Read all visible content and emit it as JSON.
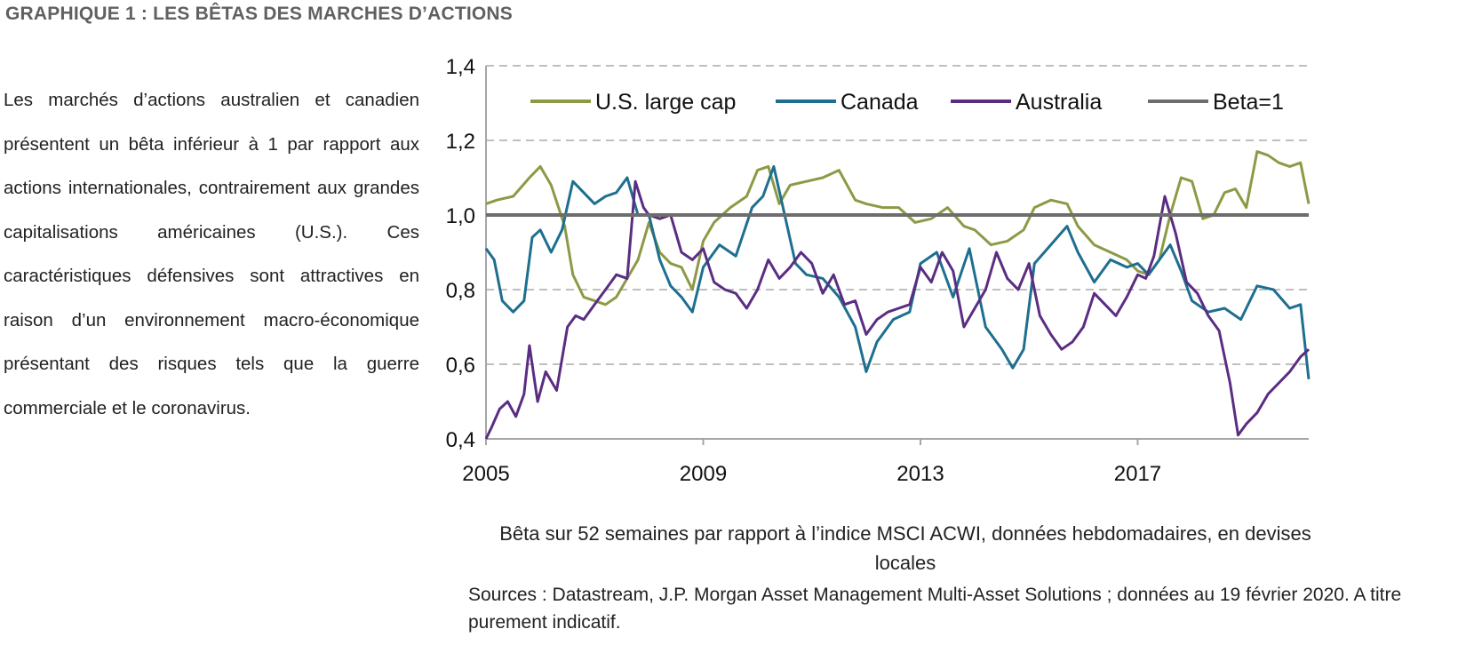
{
  "heading": "GRAPHIQUE 1 : LES BÊTAS DES MARCHES D’ACTIONS",
  "body_text": "Les marchés d’actions australien et canadien présentent un bêta inférieur à 1 par rapport aux actions internationales, contrairement aux grandes capitalisations américaines (U.S.). Ces caractéristiques défensives sont attractives en raison d’un environnement macro-économique présentant des risques tels que la guerre commerciale et le coronavirus.",
  "subtitle": "Bêta sur 52 semaines par rapport à l’indice MSCI ACWI, données hebdomadaires, en devises locales",
  "sources": "Sources : Datastream, J.P. Morgan Asset Management Multi-Asset Solutions ; données au 19 février 2020. A titre purement indicatif.",
  "chart_data": {
    "type": "line",
    "ylim": [
      0.4,
      1.4
    ],
    "xlim": [
      2005,
      2020.15
    ],
    "yticks": [
      "0,4",
      "0,6",
      "0,8",
      "1,0",
      "1,2",
      "1,4"
    ],
    "yticks_values": [
      0.4,
      0.6,
      0.8,
      1.0,
      1.2,
      1.4
    ],
    "xticks": [
      "2005",
      "2009",
      "2013",
      "2017"
    ],
    "xticks_values": [
      2005,
      2009,
      2013,
      2017
    ],
    "grid": "horizontal dashed",
    "legend_position": "top",
    "series": [
      {
        "name": "U.S. large cap",
        "color": "#8c9a45",
        "x": [
          2005.0,
          2005.2,
          2005.5,
          2005.8,
          2006.0,
          2006.2,
          2006.45,
          2006.6,
          2006.8,
          2007.0,
          2007.2,
          2007.4,
          2007.6,
          2007.8,
          2008.0,
          2008.2,
          2008.4,
          2008.6,
          2008.8,
          2009.0,
          2009.2,
          2009.5,
          2009.8,
          2010.0,
          2010.2,
          2010.4,
          2010.6,
          2010.9,
          2011.2,
          2011.5,
          2011.8,
          2012.0,
          2012.3,
          2012.6,
          2012.9,
          2013.2,
          2013.5,
          2013.8,
          2014.0,
          2014.3,
          2014.6,
          2014.9,
          2015.1,
          2015.4,
          2015.7,
          2015.9,
          2016.2,
          2016.5,
          2016.8,
          2017.0,
          2017.2,
          2017.4,
          2017.6,
          2017.8,
          2018.0,
          2018.2,
          2018.4,
          2018.6,
          2018.8,
          2019.0,
          2019.2,
          2019.4,
          2019.6,
          2019.8,
          2020.0,
          2020.15
        ],
        "values": [
          1.03,
          1.04,
          1.05,
          1.1,
          1.13,
          1.08,
          0.97,
          0.84,
          0.78,
          0.77,
          0.76,
          0.78,
          0.83,
          0.88,
          0.98,
          0.9,
          0.87,
          0.86,
          0.8,
          0.93,
          0.98,
          1.02,
          1.05,
          1.12,
          1.13,
          1.03,
          1.08,
          1.09,
          1.1,
          1.12,
          1.04,
          1.03,
          1.02,
          1.02,
          0.98,
          0.99,
          1.02,
          0.97,
          0.96,
          0.92,
          0.93,
          0.96,
          1.02,
          1.04,
          1.03,
          0.97,
          0.92,
          0.9,
          0.88,
          0.85,
          0.84,
          0.88,
          1.0,
          1.1,
          1.09,
          0.99,
          1.0,
          1.06,
          1.07,
          1.02,
          1.17,
          1.16,
          1.14,
          1.13,
          1.14,
          1.03
        ]
      },
      {
        "name": "Canada",
        "color": "#1e6f8f",
        "x": [
          2005.0,
          2005.15,
          2005.3,
          2005.5,
          2005.7,
          2005.85,
          2006.0,
          2006.2,
          2006.4,
          2006.6,
          2006.8,
          2007.0,
          2007.2,
          2007.4,
          2007.6,
          2007.8,
          2008.0,
          2008.2,
          2008.4,
          2008.6,
          2008.8,
          2009.0,
          2009.3,
          2009.6,
          2009.9,
          2010.1,
          2010.3,
          2010.5,
          2010.7,
          2010.9,
          2011.2,
          2011.5,
          2011.8,
          2012.0,
          2012.2,
          2012.5,
          2012.8,
          2013.0,
          2013.3,
          2013.6,
          2013.9,
          2014.2,
          2014.5,
          2014.7,
          2014.9,
          2015.1,
          2015.4,
          2015.7,
          2015.9,
          2016.2,
          2016.5,
          2016.8,
          2017.0,
          2017.2,
          2017.4,
          2017.6,
          2017.8,
          2018.0,
          2018.3,
          2018.6,
          2018.9,
          2019.2,
          2019.5,
          2019.8,
          2020.0,
          2020.15
        ],
        "values": [
          0.91,
          0.88,
          0.77,
          0.74,
          0.77,
          0.94,
          0.96,
          0.9,
          0.96,
          1.09,
          1.06,
          1.03,
          1.05,
          1.06,
          1.1,
          1.0,
          1.0,
          0.88,
          0.81,
          0.78,
          0.74,
          0.86,
          0.92,
          0.89,
          1.02,
          1.05,
          1.13,
          1.0,
          0.87,
          0.84,
          0.83,
          0.78,
          0.7,
          0.58,
          0.66,
          0.72,
          0.74,
          0.87,
          0.9,
          0.78,
          0.91,
          0.7,
          0.64,
          0.59,
          0.64,
          0.87,
          0.92,
          0.97,
          0.9,
          0.82,
          0.88,
          0.86,
          0.87,
          0.84,
          0.88,
          0.92,
          0.85,
          0.77,
          0.74,
          0.75,
          0.72,
          0.81,
          0.8,
          0.75,
          0.76,
          0.56
        ]
      },
      {
        "name": "Australia",
        "color": "#5b2d82",
        "x": [
          2005.0,
          2005.1,
          2005.25,
          2005.4,
          2005.55,
          2005.7,
          2005.8,
          2005.95,
          2006.1,
          2006.3,
          2006.5,
          2006.65,
          2006.8,
          2007.0,
          2007.2,
          2007.4,
          2007.6,
          2007.75,
          2007.9,
          2008.0,
          2008.2,
          2008.4,
          2008.6,
          2008.8,
          2009.0,
          2009.2,
          2009.4,
          2009.6,
          2009.8,
          2010.0,
          2010.2,
          2010.4,
          2010.6,
          2010.8,
          2011.0,
          2011.2,
          2011.4,
          2011.6,
          2011.8,
          2012.0,
          2012.2,
          2012.4,
          2012.6,
          2012.8,
          2013.0,
          2013.2,
          2013.4,
          2013.6,
          2013.8,
          2014.0,
          2014.2,
          2014.4,
          2014.6,
          2014.8,
          2015.0,
          2015.2,
          2015.4,
          2015.6,
          2015.8,
          2016.0,
          2016.2,
          2016.4,
          2016.6,
          2016.8,
          2017.0,
          2017.15,
          2017.3,
          2017.5,
          2017.7,
          2017.9,
          2018.1,
          2018.3,
          2018.5,
          2018.7,
          2018.85,
          2019.0,
          2019.2,
          2019.4,
          2019.6,
          2019.8,
          2020.0,
          2020.15
        ],
        "values": [
          0.4,
          0.43,
          0.48,
          0.5,
          0.46,
          0.52,
          0.65,
          0.5,
          0.58,
          0.53,
          0.7,
          0.73,
          0.72,
          0.76,
          0.8,
          0.84,
          0.83,
          1.09,
          1.02,
          1.0,
          0.99,
          1.0,
          0.9,
          0.88,
          0.91,
          0.82,
          0.8,
          0.79,
          0.75,
          0.8,
          0.88,
          0.83,
          0.86,
          0.9,
          0.87,
          0.79,
          0.84,
          0.76,
          0.77,
          0.68,
          0.72,
          0.74,
          0.75,
          0.76,
          0.86,
          0.82,
          0.9,
          0.85,
          0.7,
          0.75,
          0.8,
          0.9,
          0.83,
          0.8,
          0.87,
          0.73,
          0.68,
          0.64,
          0.66,
          0.7,
          0.79,
          0.76,
          0.73,
          0.78,
          0.84,
          0.83,
          0.89,
          1.05,
          0.95,
          0.82,
          0.79,
          0.73,
          0.69,
          0.55,
          0.41,
          0.44,
          0.47,
          0.52,
          0.55,
          0.58,
          0.62,
          0.64
        ]
      },
      {
        "name": "Beta=1",
        "color": "#6d6d6d",
        "x": [
          2005,
          2020.15
        ],
        "values": [
          1.0,
          1.0
        ]
      }
    ]
  }
}
